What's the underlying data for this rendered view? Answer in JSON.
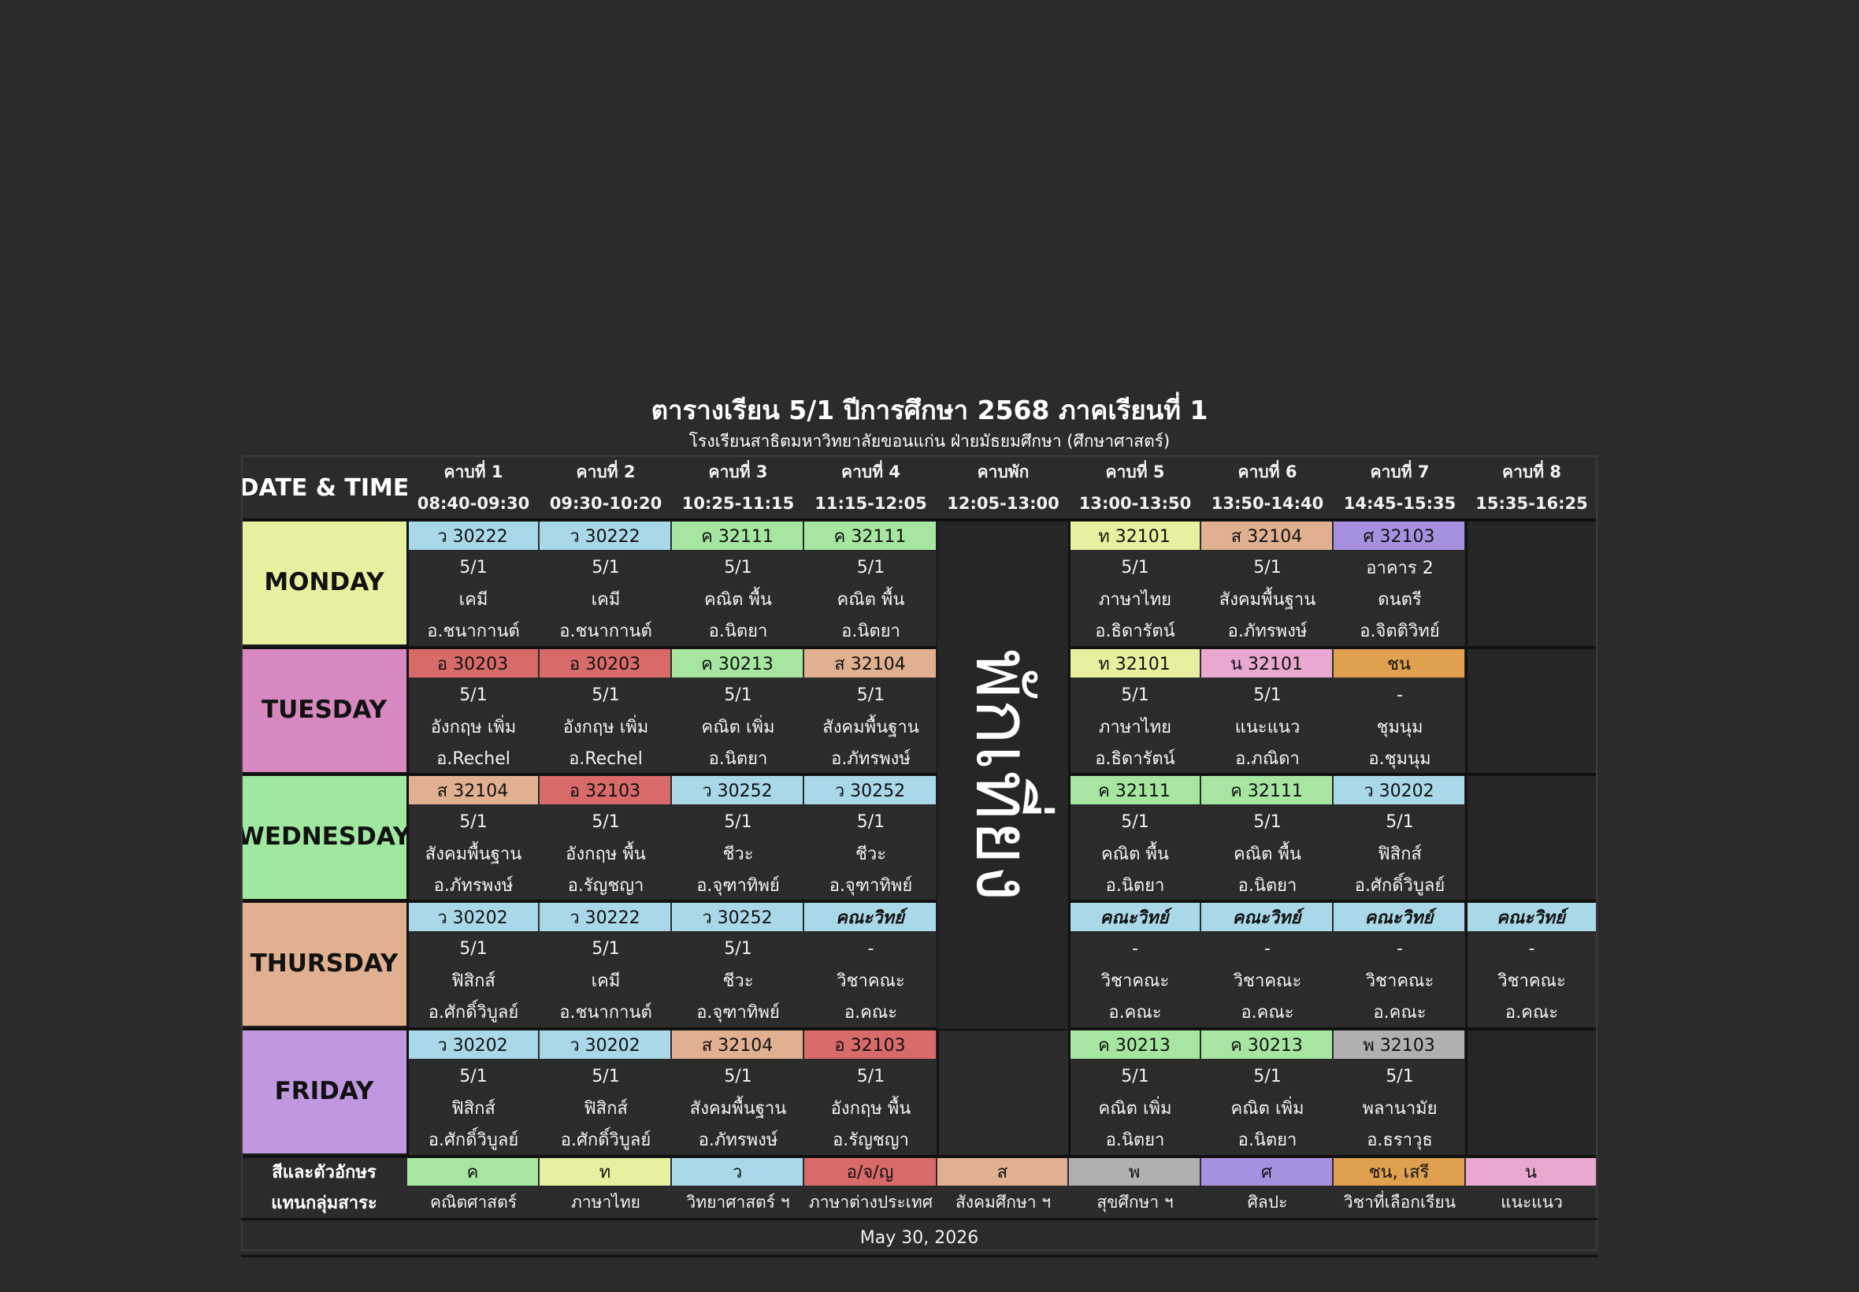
{
  "title": "ตารางเรียน 5/1 ปีการศึกษา 2568 ภาคเรียนที่ 1",
  "subtitle": "โรงเรียนสาธิตมหาวิทยาลัยขอนแก่น ฝ่ายมัธยมศึกษา (ศึกษาศาสตร์)",
  "header": {
    "date_time": "DATE & TIME",
    "periods": [
      {
        "label": "คาบที่ 1",
        "time": "08:40-09:30"
      },
      {
        "label": "คาบที่ 2",
        "time": "09:30-10:20"
      },
      {
        "label": "คาบที่ 3",
        "time": "10:25-11:15"
      },
      {
        "label": "คาบที่ 4",
        "time": "11:15-12:05"
      },
      {
        "label": "คาบพัก",
        "time": "12:05-13:00"
      },
      {
        "label": "คาบที่ 5",
        "time": "13:00-13:50"
      },
      {
        "label": "คาบที่ 6",
        "time": "13:50-14:40"
      },
      {
        "label": "คาบที่ 7",
        "time": "14:45-15:35"
      },
      {
        "label": "คาบที่ 8",
        "time": "15:35-16:25"
      }
    ]
  },
  "lunch_text": "พักเที่ยง",
  "days": [
    {
      "name": "MONDAY",
      "color": "#e8f0a0",
      "slots": [
        {
          "code": "ว 30222",
          "color": "#a9d8e8",
          "lines": [
            "5/1",
            "เคมี",
            "อ.ชนากานต์"
          ]
        },
        {
          "code": "ว 30222",
          "color": "#a9d8e8",
          "lines": [
            "5/1",
            "เคมี",
            "อ.ชนากานต์"
          ]
        },
        {
          "code": "ค 32111",
          "color": "#a6e6a0",
          "lines": [
            "5/1",
            "คณิต พื้น",
            "อ.นิตยา"
          ]
        },
        {
          "code": "ค 32111",
          "color": "#a6e6a0",
          "lines": [
            "5/1",
            "คณิต พื้น",
            "อ.นิตยา"
          ]
        },
        {
          "code": "ท 32101",
          "color": "#e8f0a0",
          "lines": [
            "5/1",
            "ภาษาไทย",
            "อ.ธิดารัตน์"
          ]
        },
        {
          "code": "ส 32104",
          "color": "#e0b090",
          "lines": [
            "5/1",
            "สังคมพื้นฐาน",
            "อ.ภัทรพงษ์"
          ]
        },
        {
          "code": "ศ 32103",
          "color": "#a890e0",
          "lines": [
            "อาคาร 2",
            "ดนตรี",
            "อ.จิตติวิทย์"
          ]
        },
        null
      ]
    },
    {
      "name": "TUESDAY",
      "color": "#d888c0",
      "slots": [
        {
          "code": "อ 30203",
          "color": "#d86a6a",
          "lines": [
            "5/1",
            "อังกฤษ เพิ่ม",
            "อ.Rechel"
          ]
        },
        {
          "code": "อ 30203",
          "color": "#d86a6a",
          "lines": [
            "5/1",
            "อังกฤษ เพิ่ม",
            "อ.Rechel"
          ]
        },
        {
          "code": "ค 30213",
          "color": "#a6e6a0",
          "lines": [
            "5/1",
            "คณิต เพิ่ม",
            "อ.นิตยา"
          ]
        },
        {
          "code": "ส 32104",
          "color": "#e0b090",
          "lines": [
            "5/1",
            "สังคมพื้นฐาน",
            "อ.ภัทรพงษ์"
          ]
        },
        {
          "code": "ท 32101",
          "color": "#e8f0a0",
          "lines": [
            "5/1",
            "ภาษาไทย",
            "อ.ธิดารัตน์"
          ]
        },
        {
          "code": "น 32101",
          "color": "#e8a8d0",
          "lines": [
            "5/1",
            "แนะแนว",
            "อ.ภณิดา"
          ]
        },
        {
          "code": "ชน",
          "color": "#e0a050",
          "lines": [
            "-",
            "ชุมนุม",
            "อ.ชุมนุม"
          ]
        },
        null
      ]
    },
    {
      "name": "WEDNESDAY",
      "color": "#a0e8a0",
      "slots": [
        {
          "code": "ส 32104",
          "color": "#e0b090",
          "lines": [
            "5/1",
            "สังคมพื้นฐาน",
            "อ.ภัทรพงษ์"
          ]
        },
        {
          "code": "อ 32103",
          "color": "#d86a6a",
          "lines": [
            "5/1",
            "อังกฤษ พื้น",
            "อ.รัญชญา"
          ]
        },
        {
          "code": "ว 30252",
          "color": "#a9d8e8",
          "lines": [
            "5/1",
            "ชีวะ",
            "อ.จุฑาทิพย์"
          ]
        },
        {
          "code": "ว 30252",
          "color": "#a9d8e8",
          "lines": [
            "5/1",
            "ชีวะ",
            "อ.จุฑาทิพย์"
          ]
        },
        {
          "code": "ค 32111",
          "color": "#a6e6a0",
          "lines": [
            "5/1",
            "คณิต พื้น",
            "อ.นิตยา"
          ]
        },
        {
          "code": "ค 32111",
          "color": "#a6e6a0",
          "lines": [
            "5/1",
            "คณิต พื้น",
            "อ.นิตยา"
          ]
        },
        {
          "code": "ว 30202",
          "color": "#a9d8e8",
          "lines": [
            "5/1",
            "ฟิสิกส์",
            "อ.ศักดิ์วิบูลย์"
          ]
        },
        null
      ]
    },
    {
      "name": "THURSDAY",
      "color": "#e0b090",
      "slots": [
        {
          "code": "ว 30202",
          "color": "#a9d8e8",
          "lines": [
            "5/1",
            "ฟิสิกส์",
            "อ.ศักดิ์วิบูลย์"
          ]
        },
        {
          "code": "ว 30222",
          "color": "#a9d8e8",
          "lines": [
            "5/1",
            "เคมี",
            "อ.ชนากานต์"
          ]
        },
        {
          "code": "ว 30252",
          "color": "#a9d8e8",
          "lines": [
            "5/1",
            "ชีวะ",
            "อ.จุฑาทิพย์"
          ]
        },
        {
          "code": "คณะวิทย์",
          "color": "#a9d8e8",
          "italic": true,
          "lines": [
            "-",
            "วิชาคณะ",
            "อ.คณะ"
          ]
        },
        {
          "code": "คณะวิทย์",
          "color": "#a9d8e8",
          "italic": true,
          "lines": [
            "-",
            "วิชาคณะ",
            "อ.คณะ"
          ]
        },
        {
          "code": "คณะวิทย์",
          "color": "#a9d8e8",
          "italic": true,
          "lines": [
            "-",
            "วิชาคณะ",
            "อ.คณะ"
          ]
        },
        {
          "code": "คณะวิทย์",
          "color": "#a9d8e8",
          "italic": true,
          "lines": [
            "-",
            "วิชาคณะ",
            "อ.คณะ"
          ]
        },
        {
          "code": "คณะวิทย์",
          "color": "#a9d8e8",
          "italic": true,
          "lines": [
            "-",
            "วิชาคณะ",
            "อ.คณะ"
          ]
        }
      ]
    },
    {
      "name": "FRIDAY",
      "color": "#c098e0",
      "slots": [
        {
          "code": "ว 30202",
          "color": "#a9d8e8",
          "lines": [
            "5/1",
            "ฟิสิกส์",
            "อ.ศักดิ์วิบูลย์"
          ]
        },
        {
          "code": "ว 30202",
          "color": "#a9d8e8",
          "lines": [
            "5/1",
            "ฟิสิกส์",
            "อ.ศักดิ์วิบูลย์"
          ]
        },
        {
          "code": "ส 32104",
          "color": "#e0b090",
          "lines": [
            "5/1",
            "สังคมพื้นฐาน",
            "อ.ภัทรพงษ์"
          ]
        },
        {
          "code": "อ 32103",
          "color": "#d86a6a",
          "lines": [
            "5/1",
            "อังกฤษ พื้น",
            "อ.รัญชญา"
          ]
        },
        {
          "code": "ค 30213",
          "color": "#a6e6a0",
          "lines": [
            "5/1",
            "คณิต เพิ่ม",
            "อ.นิตยา"
          ]
        },
        {
          "code": "ค 30213",
          "color": "#a6e6a0",
          "lines": [
            "5/1",
            "คณิต เพิ่ม",
            "อ.นิตยา"
          ]
        },
        {
          "code": "พ 32103",
          "color": "#b0b0b0",
          "lines": [
            "5/1",
            "พลานามัย",
            "อ.ธราวุธ"
          ]
        },
        null
      ]
    }
  ],
  "legend": {
    "title_line1": "สีและตัวอักษร",
    "title_line2": "แทนกลุ่มสาระ",
    "items": [
      {
        "code": "ค",
        "name": "คณิตศาสตร์",
        "color": "#a6e6a0"
      },
      {
        "code": "ท",
        "name": "ภาษาไทย",
        "color": "#e8f0a0"
      },
      {
        "code": "ว",
        "name": "วิทยาศาสตร์ ฯ",
        "color": "#a9d8e8"
      },
      {
        "code": "อ/จ/ญ",
        "name": "ภาษาต่างประเทศ",
        "color": "#d86a6a"
      },
      {
        "code": "ส",
        "name": "สังคมศึกษา ฯ",
        "color": "#e0b090"
      },
      {
        "code": "พ",
        "name": "สุขศึกษา ฯ",
        "color": "#b0b0b0"
      },
      {
        "code": "ศ",
        "name": "ศิลปะ",
        "color": "#a890e0"
      },
      {
        "code": "ชน, เสรี",
        "name": "วิชาที่เลือกเรียน",
        "color": "#e0a050"
      },
      {
        "code": "น",
        "name": "แนะแนว",
        "color": "#e8a8d0"
      }
    ]
  },
  "date": "May 30, 2026"
}
